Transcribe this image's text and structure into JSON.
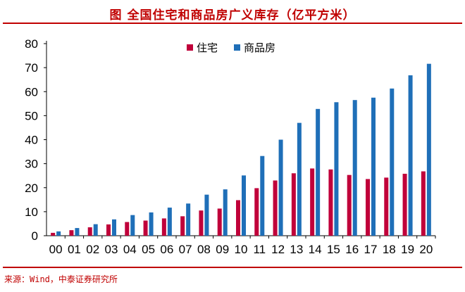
{
  "header": {
    "title": "图 全国住宅和商品房广义库存（亿平方米）"
  },
  "footer": {
    "source": "来源：Wind，中泰证券研究所"
  },
  "colors": {
    "accent": "#c00000",
    "residential": "#c0003a",
    "commercial": "#1f6fb8"
  },
  "chart_data": {
    "type": "bar",
    "title": "",
    "xlabel": "",
    "ylabel": "",
    "ylim": [
      0,
      80
    ],
    "yticks": [
      0,
      10,
      20,
      30,
      40,
      50,
      60,
      70,
      80
    ],
    "grid": false,
    "legend_position": "top-center",
    "categories": [
      "00",
      "01",
      "02",
      "03",
      "04",
      "05",
      "06",
      "07",
      "08",
      "09",
      "10",
      "11",
      "12",
      "13",
      "14",
      "15",
      "16",
      "17",
      "18",
      "19",
      "20"
    ],
    "series": [
      {
        "name": "住宅",
        "color": "#c0003a",
        "values": [
          1.2,
          2.3,
          3.5,
          4.7,
          5.7,
          6.3,
          7.2,
          8.1,
          10.5,
          11.3,
          14.8,
          19.8,
          23.0,
          26.0,
          28.0,
          27.6,
          25.3,
          23.6,
          24.2,
          25.8,
          26.8
        ]
      },
      {
        "name": "商品房",
        "color": "#1f6fb8",
        "values": [
          1.8,
          3.2,
          4.8,
          6.8,
          8.6,
          9.7,
          11.7,
          13.4,
          17.1,
          19.3,
          25.1,
          33.2,
          40.0,
          47.0,
          52.8,
          55.6,
          56.5,
          57.5,
          61.3,
          66.8,
          71.6
        ]
      }
    ]
  }
}
